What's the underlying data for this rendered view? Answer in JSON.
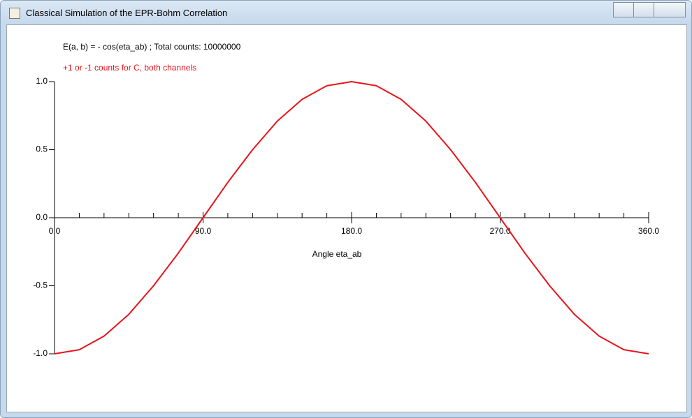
{
  "window": {
    "title": "Classical Simulation of the EPR-Bohm Correlation"
  },
  "chart_data": {
    "type": "line",
    "annotations": [
      "E(a, b) = - cos(eta_ab) ;   Total counts: 10000000",
      "+1 or -1 counts for C, both channels"
    ],
    "xlabel": "Angle eta_ab",
    "x": [
      0,
      15,
      30,
      45,
      60,
      75,
      90,
      105,
      120,
      135,
      150,
      165,
      180,
      195,
      210,
      225,
      240,
      255,
      270,
      285,
      300,
      315,
      330,
      345,
      360
    ],
    "series": [
      {
        "name": "+1 or -1 counts for C, both channels",
        "color": "#e8141b",
        "values": [
          -1,
          -0.97,
          -0.87,
          -0.71,
          -0.5,
          -0.26,
          0,
          0.26,
          0.5,
          0.71,
          0.87,
          0.97,
          1,
          0.97,
          0.87,
          0.71,
          0.5,
          0.26,
          0,
          -0.26,
          -0.5,
          -0.71,
          -0.87,
          -0.97,
          -1
        ]
      }
    ],
    "xlim": [
      0,
      360
    ],
    "xticks": [
      {
        "value": 0,
        "label": "0.0"
      },
      {
        "value": 90,
        "label": "90.0"
      },
      {
        "value": 180,
        "label": "180.0"
      },
      {
        "value": 270,
        "label": "270.0"
      },
      {
        "value": 360,
        "label": "360.0"
      }
    ],
    "xminorticks": [
      15,
      30,
      45,
      60,
      75,
      105,
      120,
      135,
      150,
      165,
      195,
      210,
      225,
      240,
      255,
      285,
      300,
      315,
      330,
      345
    ],
    "ylim": [
      -1,
      1
    ],
    "yticks": [
      {
        "value": -1,
        "label": "-1.0"
      },
      {
        "value": -0.5,
        "label": "-0.5"
      },
      {
        "value": 0,
        "label": "0.0"
      },
      {
        "value": 0.5,
        "label": "0.5"
      },
      {
        "value": 1,
        "label": "1.0"
      }
    ]
  }
}
